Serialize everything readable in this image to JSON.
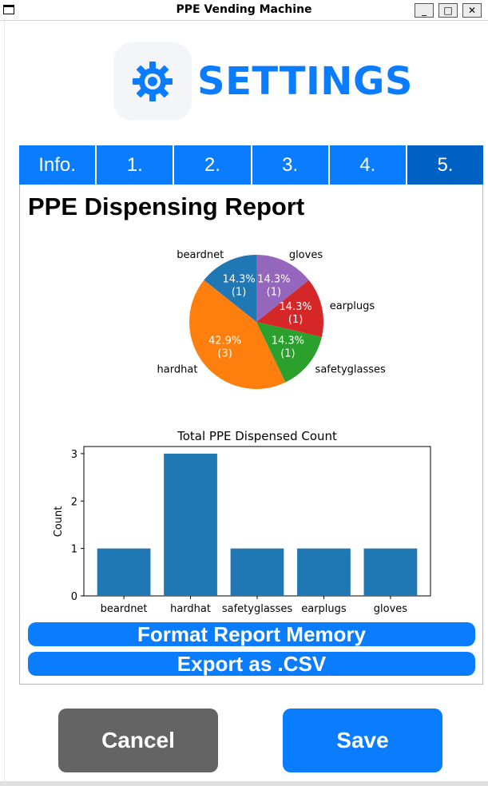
{
  "window": {
    "title": "PPE Vending Machine",
    "minimize_glyph": "_",
    "maximize_glyph": "□",
    "close_glyph": "✕"
  },
  "header": {
    "title": "SETTINGS",
    "icon": "gear-icon"
  },
  "tabs": [
    {
      "label": "Info.",
      "active": false
    },
    {
      "label": "1.",
      "active": false
    },
    {
      "label": "2.",
      "active": false
    },
    {
      "label": "3.",
      "active": false
    },
    {
      "label": "4.",
      "active": false
    },
    {
      "label": "5.",
      "active": true
    }
  ],
  "report": {
    "title": "PPE Dispensing Report",
    "format_button": "Format Report Memory",
    "export_button": "Export as .CSV"
  },
  "footer": {
    "cancel_label": "Cancel",
    "save_label": "Save"
  },
  "colors": {
    "accent": "#0a7cff",
    "tab_active": "#0061c4",
    "cancel": "#646464"
  },
  "chart_data": [
    {
      "type": "pie",
      "categories": [
        "beardnet",
        "hardhat",
        "safetyglasses",
        "earplugs",
        "gloves"
      ],
      "values": [
        1,
        3,
        1,
        1,
        1
      ],
      "labels": [
        "14.3%\n(1)",
        "42.9%\n(3)",
        "14.3%\n(1)",
        "14.3%\n(1)",
        "14.3%\n(1)"
      ],
      "label_lines": [
        [
          "14.3%",
          "(1)"
        ],
        [
          "42.9%",
          "(3)"
        ],
        [
          "14.3%",
          "(1)"
        ],
        [
          "14.3%",
          "(1)"
        ],
        [
          "14.3%",
          "(1)"
        ]
      ],
      "colors": [
        "#1f77b4",
        "#ff7f0e",
        "#2ca02c",
        "#d62728",
        "#9467bd"
      ],
      "start_angle_deg": 90,
      "direction": "counterclockwise",
      "title": ""
    },
    {
      "type": "bar",
      "title": "Total PPE Dispensed Count",
      "categories": [
        "beardnet",
        "hardhat",
        "safetyglasses",
        "earplugs",
        "gloves"
      ],
      "values": [
        1,
        3,
        1,
        1,
        1
      ],
      "xlabel": "",
      "ylabel": "Count",
      "ylim": [
        0,
        3.15
      ],
      "yticks": [
        "0",
        "1",
        "2",
        "3"
      ],
      "color": "#1f77b4"
    }
  ]
}
